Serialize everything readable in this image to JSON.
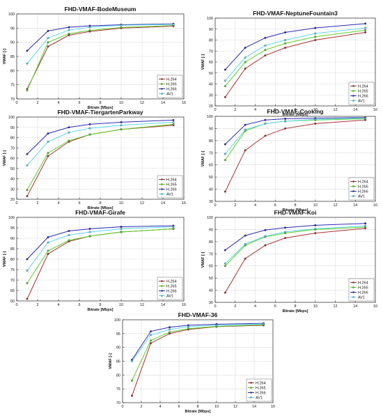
{
  "colors": {
    "H.264": "#a83232",
    "H.265": "#5ccf2a",
    "H.266": "#2b2bb0",
    "AV1": "#5fd7f0"
  },
  "chart_data": [
    {
      "type": "line",
      "title": "FHD-VMAF-BodeMuseum",
      "xlabel": "Bitrate [Mbps]",
      "ylabel": "VMAF [-]",
      "xlim": [
        0,
        16
      ],
      "ylim": [
        70,
        100
      ],
      "xticks": [
        "0",
        "2",
        "4",
        "6",
        "8",
        "10",
        "12",
        "14",
        "16"
      ],
      "yticks": [
        "70",
        "75",
        "80",
        "85",
        "90",
        "95",
        "100"
      ],
      "grid": true,
      "legend_position": "bottom-right",
      "x": [
        1,
        3,
        5,
        7,
        10,
        15
      ],
      "series": [
        {
          "name": "H.264",
          "values": [
            73.5,
            88.5,
            92.5,
            93.8,
            95.0,
            95.7
          ]
        },
        {
          "name": "H.265",
          "values": [
            73.0,
            90.0,
            93.0,
            94.2,
            95.2,
            95.9
          ]
        },
        {
          "name": "H.266",
          "values": [
            87.0,
            94.0,
            95.3,
            95.8,
            96.2,
            96.5
          ]
        },
        {
          "name": "AV1",
          "values": [
            82.5,
            91.5,
            94.3,
            95.3,
            96.0,
            96.3
          ]
        }
      ]
    },
    {
      "type": "line",
      "title": "FHD-VMAF-NeptuneFountain3",
      "xlabel": "Bitrate [Mbps]",
      "ylabel": "VMAF [-]",
      "xlim": [
        0,
        16
      ],
      "ylim": [
        20,
        100
      ],
      "xticks": [
        "0",
        "2",
        "4",
        "6",
        "8",
        "10",
        "12",
        "14",
        "16"
      ],
      "yticks": [
        "20",
        "30",
        "40",
        "50",
        "60",
        "70",
        "80",
        "90",
        "100"
      ],
      "grid": true,
      "legend_position": "bottom-right",
      "x": [
        1,
        3,
        5,
        7,
        10,
        15
      ],
      "series": [
        {
          "name": "H.264",
          "values": [
            28,
            54,
            66,
            73,
            80,
            87
          ]
        },
        {
          "name": "H.265",
          "values": [
            38,
            60,
            71,
            77,
            83,
            89
          ]
        },
        {
          "name": "H.266",
          "values": [
            53,
            73,
            82,
            87,
            91,
            95
          ]
        },
        {
          "name": "AV1",
          "values": [
            43,
            64,
            75,
            80,
            86,
            91
          ]
        }
      ]
    },
    {
      "type": "line",
      "title": "FHD-VMAF-TiergartenParkway",
      "xlabel": "Bitrate [Mbps]",
      "ylabel": "VMAF [-]",
      "xlim": [
        0,
        16
      ],
      "ylim": [
        20,
        100
      ],
      "xticks": [
        "0",
        "2",
        "4",
        "6",
        "8",
        "10",
        "12",
        "14",
        "16"
      ],
      "yticks": [
        "20",
        "30",
        "40",
        "50",
        "60",
        "70",
        "80",
        "90",
        "100"
      ],
      "grid": true,
      "legend_position": "bottom-right",
      "x": [
        1,
        3,
        5,
        7,
        10,
        15
      ],
      "series": [
        {
          "name": "H.264",
          "values": [
            23,
            62,
            76,
            83,
            88,
            92
          ]
        },
        {
          "name": "H.265",
          "values": [
            29,
            65,
            77,
            83,
            88,
            93
          ]
        },
        {
          "name": "H.266",
          "values": [
            64,
            84,
            90,
            93,
            95,
            97
          ]
        },
        {
          "name": "AV1",
          "values": [
            53,
            76,
            85,
            89,
            92,
            95
          ]
        }
      ]
    },
    {
      "type": "line",
      "title": "FHD-VMAF-Cooking",
      "xlabel": "Bitrate [Mbps]",
      "ylabel": "VMAF [-]",
      "xlim": [
        0,
        16
      ],
      "ylim": [
        30,
        100
      ],
      "xticks": [
        "0",
        "2",
        "4",
        "6",
        "8",
        "10",
        "12",
        "14",
        "16"
      ],
      "yticks": [
        "30",
        "40",
        "50",
        "60",
        "70",
        "80",
        "90",
        "100"
      ],
      "grid": true,
      "legend_position": "bottom-right",
      "x": [
        1,
        3,
        5,
        7,
        10,
        15
      ],
      "series": [
        {
          "name": "H.264",
          "values": [
            38,
            72,
            84,
            90,
            94,
            97
          ]
        },
        {
          "name": "H.265",
          "values": [
            64,
            88,
            94,
            96,
            97,
            98
          ]
        },
        {
          "name": "H.266",
          "values": [
            77,
            93,
            97,
            98,
            98.5,
            99
          ]
        },
        {
          "name": "AV1",
          "values": [
            69,
            89,
            94,
            96,
            97.5,
            98.5
          ]
        }
      ]
    },
    {
      "type": "line",
      "title": "FHD-VMAF-Girafe",
      "xlabel": "Bitrate [Mbps]",
      "ylabel": "VMAF [-]",
      "xlim": [
        0,
        16
      ],
      "ylim": [
        60,
        100
      ],
      "xticks": [
        "0",
        "2",
        "4",
        "6",
        "8",
        "10",
        "12",
        "14",
        "16"
      ],
      "yticks": [
        "60",
        "65",
        "70",
        "75",
        "80",
        "85",
        "90",
        "95",
        "100"
      ],
      "grid": true,
      "legend_position": "bottom-right",
      "x": [
        1,
        3,
        5,
        7,
        10,
        15
      ],
      "series": [
        {
          "name": "H.264",
          "values": [
            61,
            82.5,
            88.5,
            91,
            93,
            94.5
          ]
        },
        {
          "name": "H.265",
          "values": [
            68.5,
            84,
            89,
            91,
            93,
            94.5
          ]
        },
        {
          "name": "H.266",
          "values": [
            80,
            90.5,
            93.5,
            94.5,
            95.5,
            96
          ]
        },
        {
          "name": "AV1",
          "values": [
            74.5,
            88,
            91.5,
            93,
            94.5,
            95.5
          ]
        }
      ]
    },
    {
      "type": "line",
      "title": "FHD-VMAF-Koi",
      "xlabel": "Bitrate [Mbps]",
      "ylabel": "VMAF [-]",
      "xlim": [
        0,
        16
      ],
      "ylim": [
        30,
        100
      ],
      "xticks": [
        "0",
        "2",
        "4",
        "6",
        "8",
        "10",
        "12",
        "14",
        "16"
      ],
      "yticks": [
        "30",
        "40",
        "50",
        "60",
        "70",
        "80",
        "90",
        "100"
      ],
      "grid": true,
      "legend_position": "bottom-right",
      "x": [
        1,
        3,
        5,
        7,
        10,
        15
      ],
      "series": [
        {
          "name": "H.264",
          "values": [
            38,
            66,
            77,
            83,
            87,
            91
          ]
        },
        {
          "name": "H.265",
          "values": [
            60,
            77,
            84,
            87,
            90,
            92
          ]
        },
        {
          "name": "H.266",
          "values": [
            73,
            85,
            89.5,
            91.5,
            93.5,
            95
          ]
        },
        {
          "name": "AV1",
          "values": [
            62,
            78,
            84.5,
            88,
            90.5,
            93
          ]
        }
      ]
    },
    {
      "type": "line",
      "title": "FHD-VMAF-36",
      "xlabel": "Bitrate [Mbps]",
      "ylabel": "VMAF [-]",
      "xlim": [
        0,
        16
      ],
      "ylim": [
        70,
        100
      ],
      "xticks": [
        "0",
        "2",
        "4",
        "6",
        "8",
        "10",
        "12",
        "14",
        "16"
      ],
      "yticks": [
        "70",
        "75",
        "80",
        "85",
        "90",
        "95",
        "100"
      ],
      "grid": true,
      "legend_position": "bottom-right",
      "x": [
        1,
        3,
        5,
        7,
        10,
        15
      ],
      "series": [
        {
          "name": "H.264",
          "values": [
            72.5,
            91.5,
            95,
            96.5,
            97.5,
            98
          ]
        },
        {
          "name": "H.265",
          "values": [
            78,
            92.5,
            95.5,
            96.8,
            97.6,
            98.2
          ]
        },
        {
          "name": "H.266",
          "values": [
            85.5,
            95.8,
            97.3,
            98,
            98.4,
            98.7
          ]
        },
        {
          "name": "AV1",
          "values": [
            85,
            94.5,
            96.5,
            97.5,
            98,
            98.5
          ]
        }
      ]
    }
  ]
}
